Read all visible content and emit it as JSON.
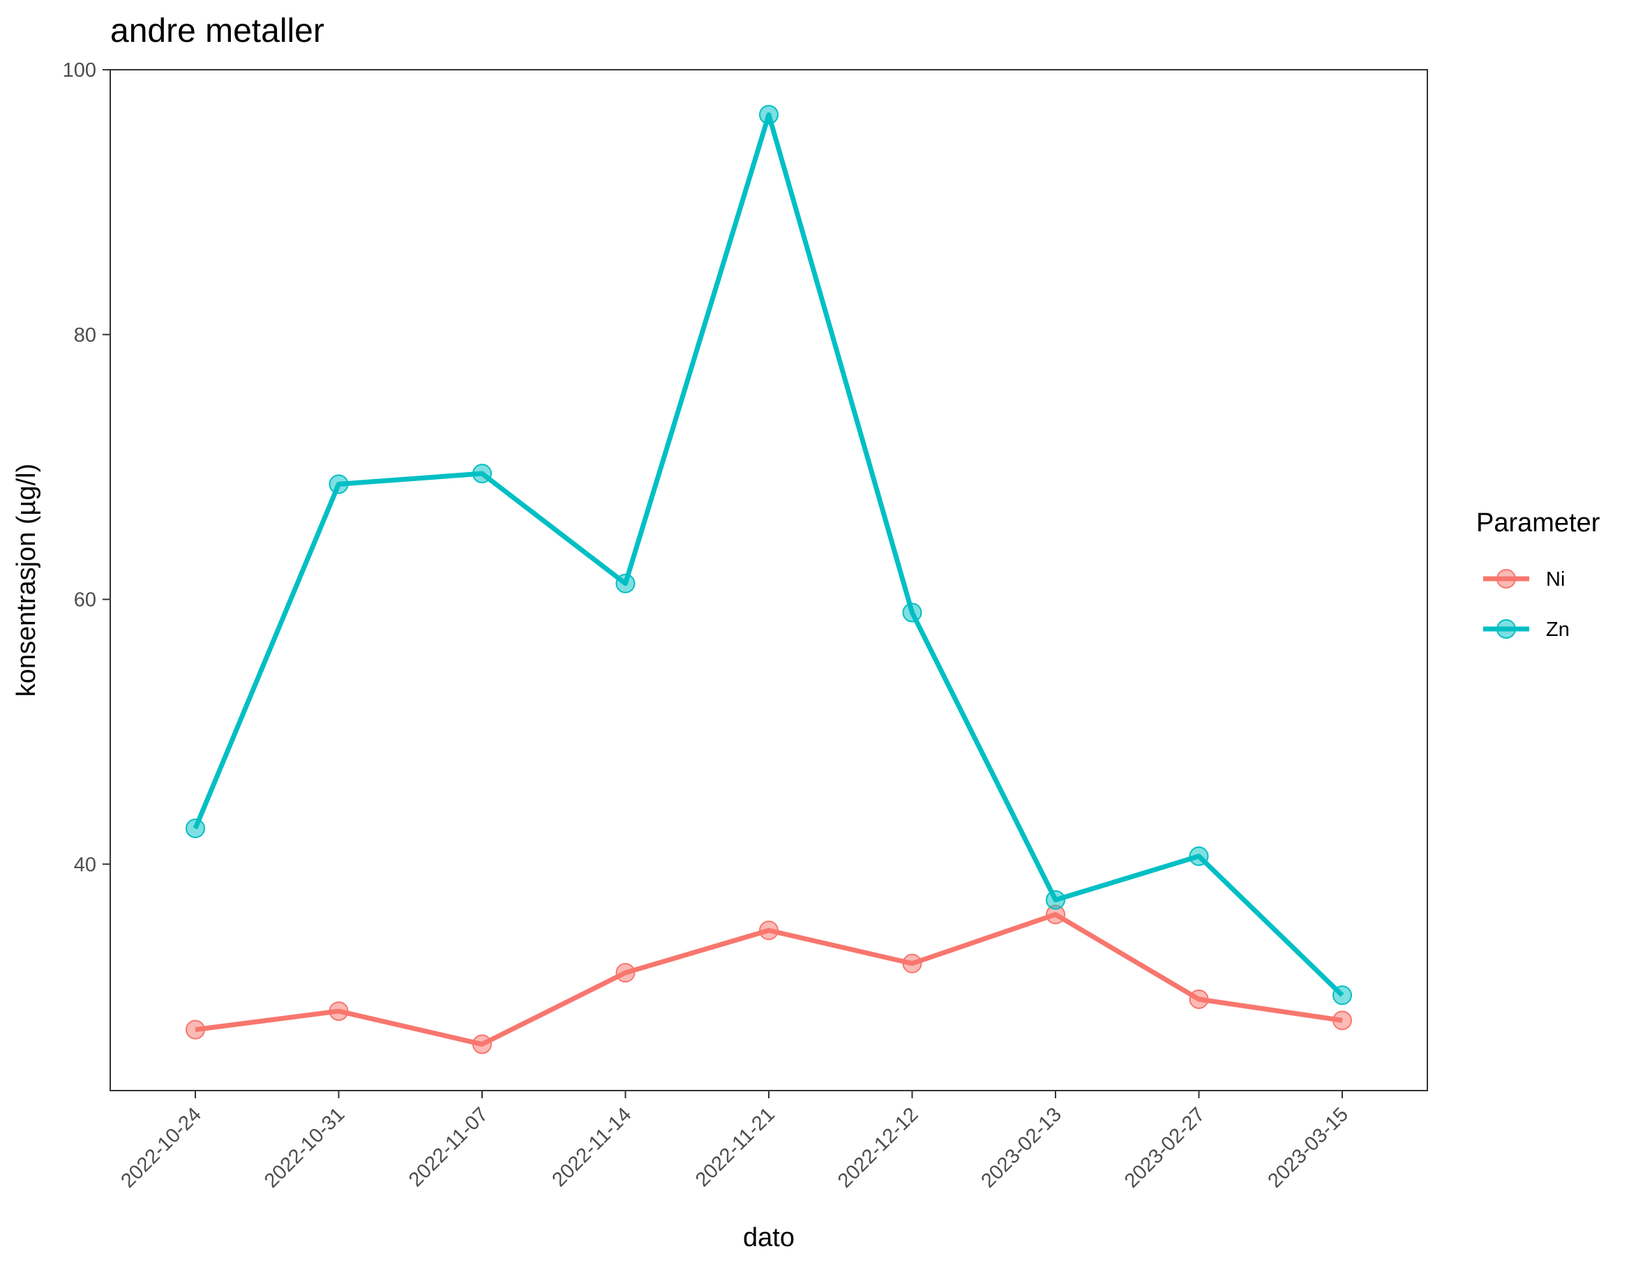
{
  "chart_data": {
    "type": "line",
    "title": "andre metaller",
    "xlabel": "dato",
    "ylabel": "konsentrasjon (µg/l)",
    "categories": [
      "2022-10-24",
      "2022-10-31",
      "2022-11-07",
      "2022-11-14",
      "2022-11-21",
      "2022-12-12",
      "2023-02-13",
      "2023-02-27",
      "2023-03-15"
    ],
    "series": [
      {
        "name": "Ni",
        "color": "#F8766D",
        "values": [
          27.5,
          28.9,
          26.4,
          31.8,
          35.0,
          32.5,
          36.2,
          29.8,
          28.2
        ]
      },
      {
        "name": "Zn",
        "color": "#00BFC4",
        "values": [
          42.7,
          68.7,
          69.5,
          61.2,
          96.6,
          59.0,
          37.3,
          40.6,
          30.1
        ]
      }
    ],
    "ylim": [
      22.9,
      100
    ],
    "yticks": [
      40,
      60,
      80,
      100
    ],
    "grid": false,
    "legend": {
      "title": "Parameter",
      "position": "right"
    }
  }
}
